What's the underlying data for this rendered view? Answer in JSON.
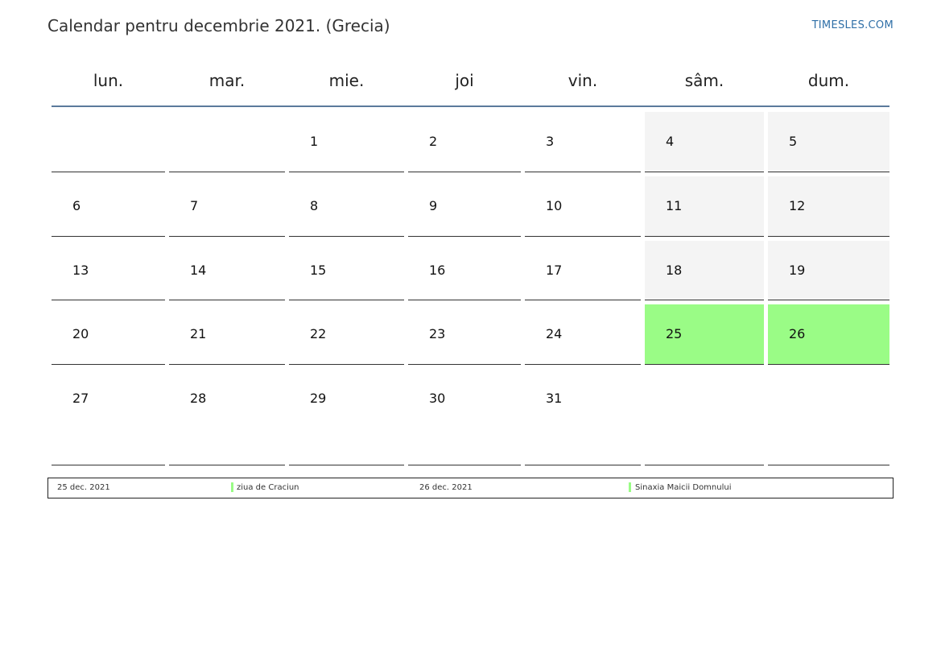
{
  "header": {
    "title": "Calendar pentru decembrie 2021. (Grecia)",
    "brand": "TIMESLES.COM"
  },
  "weekdays": [
    "lun.",
    "mar.",
    "mie.",
    "joi",
    "vin.",
    "sâm.",
    "dum."
  ],
  "weeks": [
    [
      "",
      "",
      "1",
      "2",
      "3",
      "4",
      "5"
    ],
    [
      "6",
      "7",
      "8",
      "9",
      "10",
      "11",
      "12"
    ],
    [
      "13",
      "14",
      "15",
      "16",
      "17",
      "18",
      "19"
    ],
    [
      "20",
      "21",
      "22",
      "23",
      "24",
      "25",
      "26"
    ],
    [
      "27",
      "28",
      "29",
      "30",
      "31",
      "",
      ""
    ]
  ],
  "holidays": [
    "25",
    "26"
  ],
  "legend": [
    {
      "date": "25 dec. 2021",
      "name": "ziua de Craciun"
    },
    {
      "date": "26 dec. 2021",
      "name": "Sinaxia Maicii Domnului"
    }
  ],
  "colors": {
    "holiday": "#9afc86",
    "weekend": "#f4f4f4",
    "header_rule": "#5b7a9b",
    "brand": "#2f6fa7"
  }
}
